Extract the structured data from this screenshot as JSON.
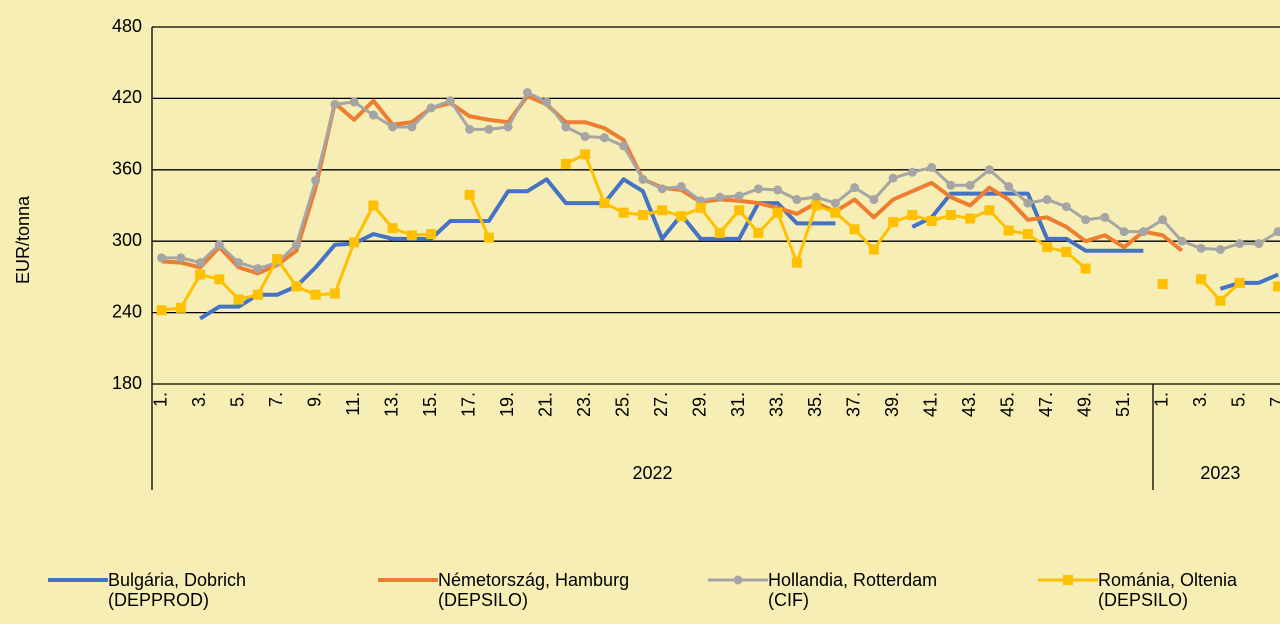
{
  "chart_data": {
    "type": "line",
    "y_label": "EUR/tonna",
    "ylim": [
      180,
      480
    ],
    "yticks": [
      180,
      240,
      300,
      360,
      420,
      480
    ],
    "grid": true,
    "category_groups": [
      {
        "label": "2022",
        "categories": [
          "1.",
          null,
          "3.",
          null,
          "5.",
          null,
          "7.",
          null,
          "9.",
          null,
          "11.",
          null,
          "13.",
          null,
          "15.",
          null,
          "17.",
          null,
          "19.",
          null,
          "21.",
          null,
          "23.",
          null,
          "25.",
          null,
          "27.",
          null,
          "29.",
          null,
          "31.",
          null,
          "33.",
          null,
          "35.",
          null,
          "37.",
          null,
          "39.",
          null,
          "41.",
          null,
          "43.",
          null,
          "45.",
          null,
          "47.",
          null,
          "49.",
          null,
          "51.",
          null
        ]
      },
      {
        "label": "2023",
        "categories": [
          "1.",
          null,
          "3.",
          null,
          "5.",
          null,
          "7."
        ]
      }
    ],
    "legend": "bottom",
    "series": [
      {
        "name": "Bulgária, Dobrich (DEPPROD)",
        "color": "#4472c4",
        "marker": "none",
        "values": [
          null,
          null,
          235,
          245,
          245,
          255,
          255,
          262,
          278,
          297,
          298,
          306,
          302,
          302,
          302,
          317,
          317,
          317,
          342,
          342,
          352,
          332,
          332,
          332,
          352,
          342,
          302,
          322,
          302,
          302,
          302,
          332,
          332,
          315,
          315,
          315,
          null,
          null,
          null,
          312,
          320,
          340,
          340,
          340,
          340,
          340,
          302,
          302,
          292,
          292,
          292,
          292,
          null,
          null,
          null,
          260,
          265,
          265,
          272
        ]
      },
      {
        "name": "Németország, Hamburg (DEPSILO)",
        "color": "#ed7d31",
        "marker": "none",
        "values": [
          283,
          282,
          278,
          295,
          278,
          273,
          280,
          292,
          345,
          416,
          402,
          418,
          398,
          400,
          412,
          416,
          405,
          402,
          400,
          422,
          415,
          400,
          400,
          395,
          385,
          352,
          345,
          343,
          333,
          335,
          334,
          332,
          328,
          323,
          332,
          325,
          335,
          320,
          335,
          342,
          349,
          337,
          330,
          345,
          335,
          318,
          320,
          312,
          300,
          305,
          295,
          308,
          305,
          292,
          null,
          null,
          null,
          null,
          null
        ]
      },
      {
        "name": "Hollandia, Rotterdam (CIF)",
        "color": "#a5a5a5",
        "marker": "circle",
        "values": [
          286,
          286,
          282,
          297,
          282,
          277,
          282,
          297,
          351,
          415,
          417,
          406,
          396,
          396,
          412,
          418,
          394,
          394,
          396,
          425,
          417,
          396,
          388,
          387,
          380,
          352,
          344,
          346,
          334,
          337,
          338,
          344,
          343,
          335,
          337,
          332,
          345,
          335,
          353,
          358,
          362,
          347,
          347,
          360,
          346,
          332,
          335,
          329,
          318,
          320,
          308,
          308,
          318,
          300,
          294,
          293,
          298,
          298,
          308
        ]
      },
      {
        "name": "Románia, Oltenia (DEPSILO)",
        "color": "#ffc000",
        "marker": "square",
        "values": [
          242,
          244,
          272,
          268,
          251,
          255,
          285,
          262,
          255,
          256,
          299,
          330,
          311,
          305,
          306,
          null,
          339,
          303,
          null,
          null,
          null,
          365,
          373,
          332,
          324,
          322,
          326,
          321,
          328,
          307,
          326,
          307,
          324,
          282,
          330,
          324,
          310,
          293,
          316,
          322,
          317,
          322,
          319,
          326,
          309,
          306,
          295,
          291,
          277,
          null,
          null,
          null,
          264,
          null,
          268,
          250,
          265,
          null,
          262
        ]
      }
    ]
  }
}
